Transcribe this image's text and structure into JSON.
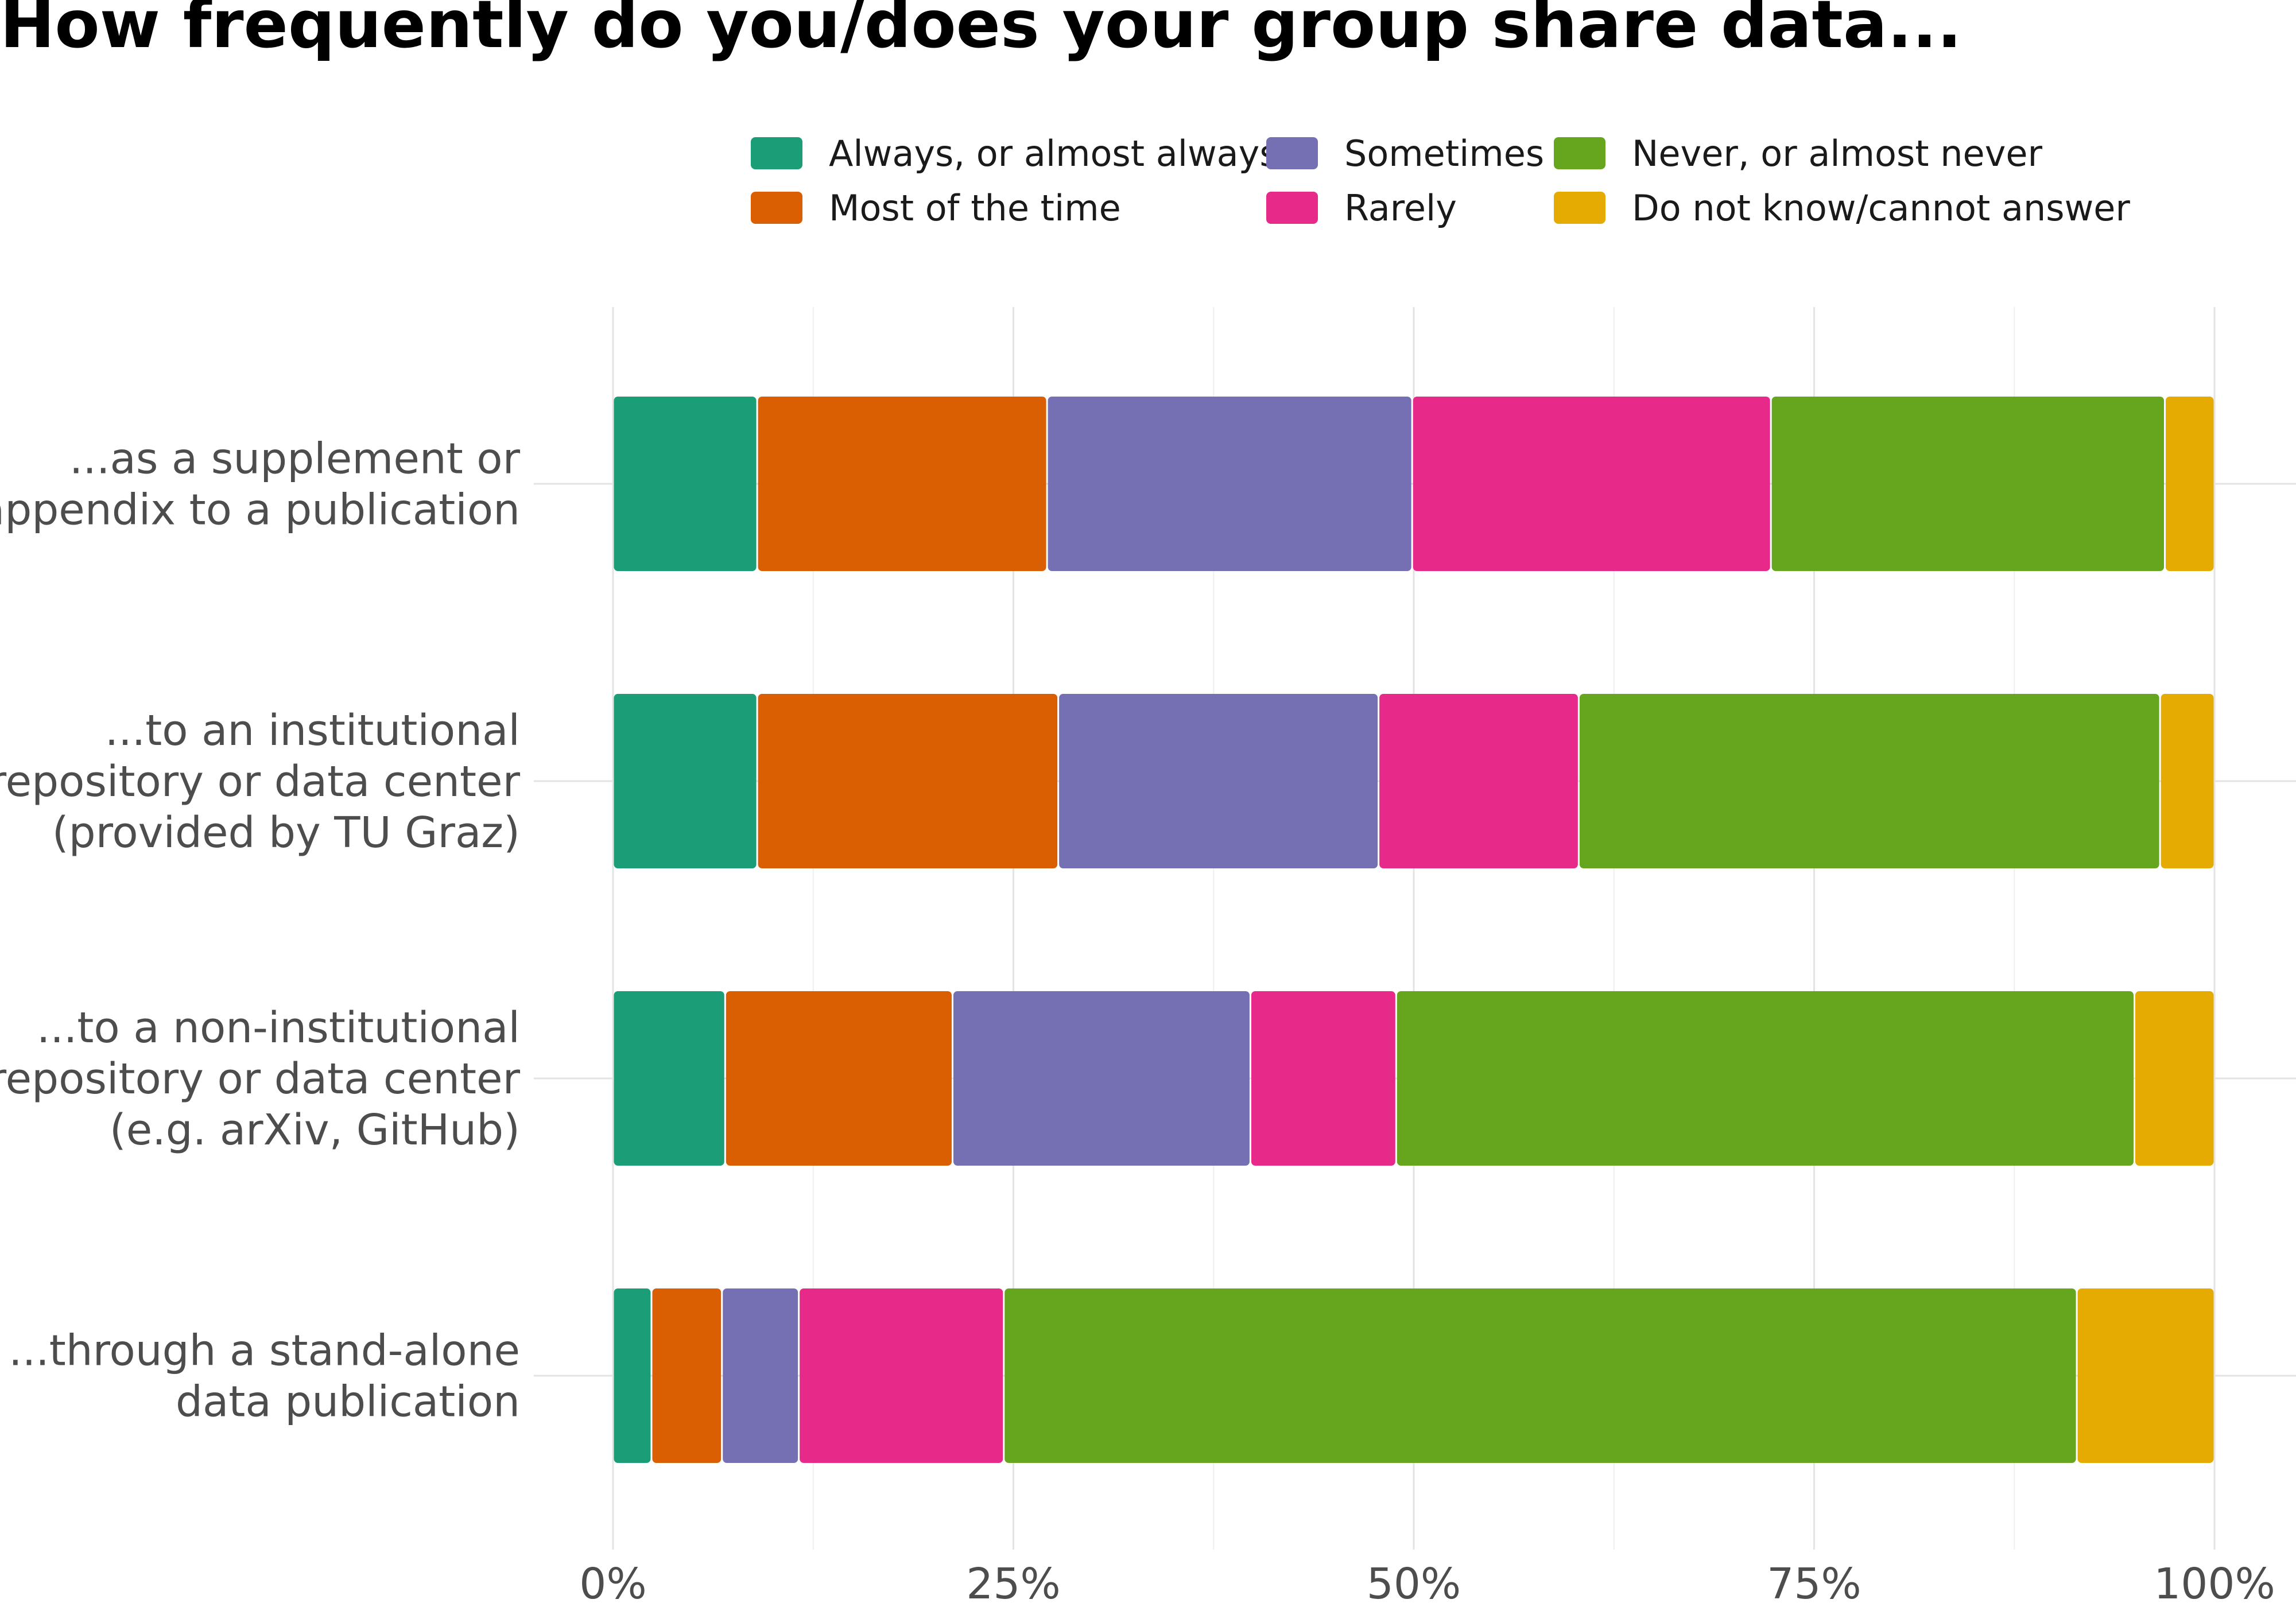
{
  "chart_data": {
    "type": "bar",
    "orientation": "horizontal",
    "stacked": true,
    "title": "How frequently do you/does your group share data...",
    "xlim": [
      0,
      100
    ],
    "x_ticks": [
      0,
      25,
      50,
      75,
      100
    ],
    "x_tick_labels": [
      "0%",
      "25%",
      "50%",
      "75%",
      "100%"
    ],
    "grid": true,
    "legend_position": "top",
    "categories": [
      [
        "...as a supplement or",
        "appendix to a publication"
      ],
      [
        "...to an institutional",
        "repository or data center",
        "(provided by TU Graz)"
      ],
      [
        "...to a non-institutional",
        "repository or data center",
        "(e.g. arXiv, GitHub)"
      ],
      [
        "...through a stand-alone",
        "data publication"
      ]
    ],
    "series": [
      {
        "name": "Always, or almost always",
        "color": "#1b9e77",
        "values": [
          9.0,
          9.0,
          7.0,
          2.4
        ]
      },
      {
        "name": "Most of the time",
        "color": "#d95f02",
        "values": [
          18.1,
          18.8,
          14.2,
          4.4
        ]
      },
      {
        "name": "Sometimes",
        "color": "#7570b3",
        "values": [
          22.8,
          20.0,
          18.6,
          4.8
        ]
      },
      {
        "name": "Rarely",
        "color": "#e7298a",
        "values": [
          22.4,
          12.5,
          9.1,
          12.8
        ]
      },
      {
        "name": "Never, or almost never",
        "color": "#66a61e",
        "values": [
          24.6,
          36.3,
          46.1,
          67.0
        ]
      },
      {
        "name": "Do not know/cannot answer",
        "color": "#e6ab02",
        "values": [
          3.1,
          3.4,
          5.0,
          8.6
        ]
      }
    ]
  }
}
